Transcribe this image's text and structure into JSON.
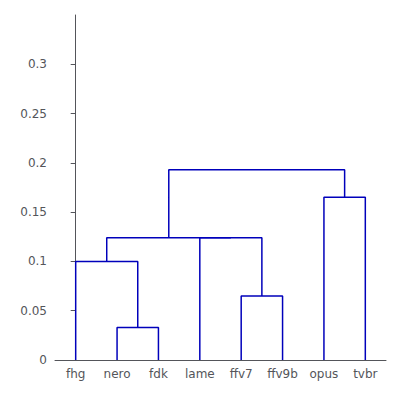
{
  "chart_data": {
    "type": "dendrogram",
    "categories": [
      "fhg",
      "nero",
      "fdk",
      "lame",
      "ffv7",
      "ffv9b",
      "opus",
      "tvbr"
    ],
    "merges": [
      {
        "left": 1,
        "right": 2,
        "height": 0.033
      },
      {
        "left": 4,
        "right": 5,
        "height": 0.065
      },
      {
        "left": 0,
        "right": 8,
        "height": 0.1
      },
      {
        "left": 3,
        "right": 9,
        "height": 0.124
      },
      {
        "left": 10,
        "right": 11,
        "height": 0.124
      },
      {
        "left": 6,
        "right": 7,
        "height": 0.165
      },
      {
        "left": 12,
        "right": 13,
        "height": 0.193
      }
    ],
    "color": "#0000bb",
    "ylim": [
      0,
      0.35
    ],
    "yticks": [
      0,
      0.05,
      0.1,
      0.15,
      0.2,
      0.25,
      0.3
    ],
    "grid": false
  }
}
